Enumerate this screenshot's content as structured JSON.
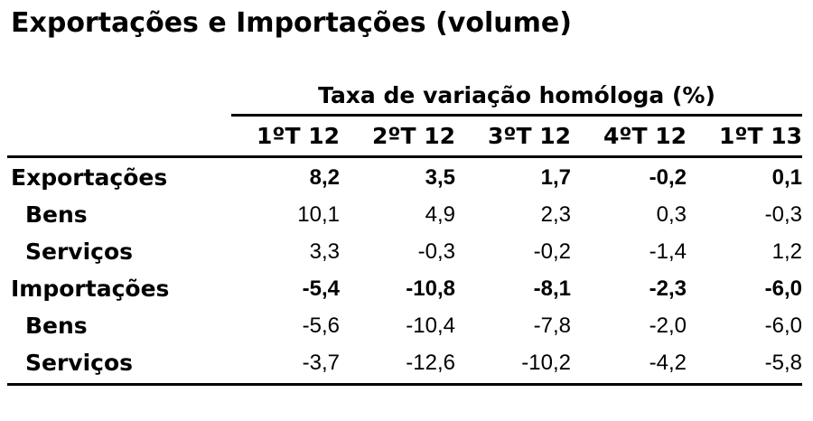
{
  "title": "Exportações e Importações (volume)",
  "table": {
    "supheader": "Taxa de variação homóloga (%)",
    "columns": [
      "1ºT 12",
      "2ºT 12",
      "3ºT 12",
      "4ºT 12",
      "1ºT 13"
    ],
    "rows": [
      {
        "label": "Exportações",
        "level": "main",
        "values": [
          "8,2",
          "3,5",
          "1,7",
          "-0,2",
          "0,1"
        ]
      },
      {
        "label": "Bens",
        "level": "sub",
        "values": [
          "10,1",
          "4,9",
          "2,3",
          "0,3",
          "-0,3"
        ]
      },
      {
        "label": "Serviços",
        "level": "sub",
        "values": [
          "3,3",
          "-0,3",
          "-0,2",
          "-1,4",
          "1,2"
        ]
      },
      {
        "label": "Importações",
        "level": "main",
        "values": [
          "-5,4",
          "-10,8",
          "-8,1",
          "-2,3",
          "-6,0"
        ]
      },
      {
        "label": "Bens",
        "level": "sub",
        "values": [
          "-5,6",
          "-10,4",
          "-7,8",
          "-2,0",
          "-6,0"
        ]
      },
      {
        "label": "Serviços",
        "level": "sub",
        "values": [
          "-3,7",
          "-12,6",
          "-10,2",
          "-4,2",
          "-5,8"
        ]
      }
    ]
  }
}
